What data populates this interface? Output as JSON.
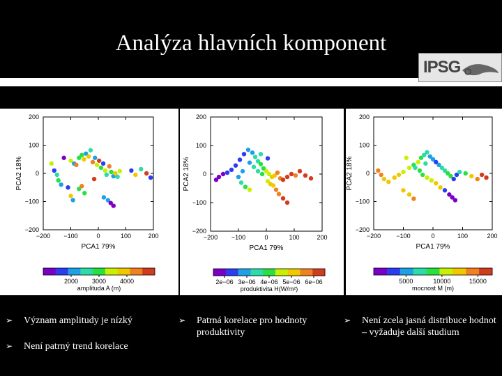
{
  "slide": {
    "title": "Analýza hlavních komponent",
    "logo_text": "IPSG"
  },
  "bullets": [
    {
      "text": "Význam amplitudy je nízký"
    },
    {
      "text": "Není patrný trend korelace"
    },
    {
      "text": "Patrná korelace pro hodnoty produktivity"
    },
    {
      "text": "Není zcela jasná distribuce hodnot – vyžaduje další studium"
    }
  ],
  "colors": {
    "palette": [
      "#7a00c8",
      "#2c3cf0",
      "#1ea0e6",
      "#2adca8",
      "#28e040",
      "#c8f000",
      "#f0c800",
      "#f08020",
      "#d23c1e"
    ]
  },
  "chart_data": [
    {
      "type": "scatter",
      "xlabel": "PCA1 79%",
      "ylabel": "PCA2 18%",
      "xlim": [
        -200,
        200
      ],
      "ylim": [
        -200,
        200
      ],
      "xticks": [
        "−200",
        "−100",
        "0",
        "100",
        "200"
      ],
      "yticks": [
        "200",
        "100",
        "0",
        "−100",
        "−200"
      ],
      "grid": false,
      "colorbar": {
        "label": "amplituda A (m)",
        "ticks": [
          "2000",
          "3000",
          "4000"
        ],
        "range": [
          1000,
          5000
        ]
      },
      "points": [
        [
          -125,
          55,
          1400
        ],
        [
          -100,
          45,
          3500
        ],
        [
          -88,
          35,
          2300
        ],
        [
          -80,
          30,
          4200
        ],
        [
          -70,
          55,
          3000
        ],
        [
          -60,
          65,
          2800
        ],
        [
          -52,
          50,
          4100
        ],
        [
          -45,
          70,
          1900
        ],
        [
          -35,
          60,
          3800
        ],
        [
          -28,
          82,
          2600
        ],
        [
          -20,
          40,
          4400
        ],
        [
          -12,
          55,
          2200
        ],
        [
          -5,
          30,
          3400
        ],
        [
          3,
          45,
          4700
        ],
        [
          10,
          20,
          2900
        ],
        [
          18,
          35,
          1700
        ],
        [
          25,
          10,
          3600
        ],
        [
          30,
          -5,
          2500
        ],
        [
          40,
          25,
          4300
        ],
        [
          47,
          5,
          3100
        ],
        [
          55,
          -10,
          2000
        ],
        [
          62,
          0,
          4000
        ],
        [
          70,
          -12,
          2700
        ],
        [
          78,
          8,
          3300
        ],
        [
          -160,
          10,
          1500
        ],
        [
          -150,
          -5,
          2400
        ],
        [
          -145,
          -25,
          3000
        ],
        [
          -135,
          -40,
          2100
        ],
        [
          -110,
          -50,
          1600
        ],
        [
          -70,
          -55,
          3200
        ],
        [
          -60,
          -45,
          4500
        ],
        [
          -50,
          -70,
          2800
        ],
        [
          -100,
          -80,
          3900
        ],
        [
          -92,
          -95,
          2300
        ],
        [
          120,
          10,
          1800
        ],
        [
          135,
          -5,
          3700
        ],
        [
          155,
          15,
          2600
        ],
        [
          175,
          0,
          4600
        ],
        [
          190,
          -15,
          1500
        ],
        [
          20,
          -85,
          2200
        ],
        [
          35,
          -95,
          1900
        ],
        [
          45,
          -105,
          1400
        ],
        [
          55,
          -115,
          1300
        ],
        [
          -170,
          35,
          3500
        ],
        [
          -15,
          -20,
          4900
        ]
      ]
    },
    {
      "type": "scatter",
      "xlabel": "PCA1 79%",
      "ylabel": "PCA2 18%",
      "xlim": [
        -200,
        200
      ],
      "ylim": [
        -200,
        200
      ],
      "xticks": [
        "−200",
        "−100",
        "0",
        "100",
        "200"
      ],
      "yticks": [
        "200",
        "100",
        "0",
        "−100",
        "−200"
      ],
      "grid": false,
      "colorbar": {
        "label": "produktivita H(W/m²)",
        "ticks": [
          "2e−06",
          "3e−06",
          "4e−06",
          "5e−06",
          "6e−06"
        ],
        "range": [
          1.5e-06,
          6.5e-06
        ]
      },
      "points": [
        [
          -180,
          -20,
          1.6e-06
        ],
        [
          -170,
          -10,
          1.8e-06
        ],
        [
          -155,
          0,
          2e-06
        ],
        [
          -140,
          5,
          2.2e-06
        ],
        [
          -125,
          15,
          2.4e-06
        ],
        [
          -110,
          30,
          2.3e-06
        ],
        [
          -95,
          50,
          2.6e-06
        ],
        [
          -80,
          70,
          2.5e-06
        ],
        [
          -65,
          85,
          2.7e-06
        ],
        [
          -50,
          75,
          3e-06
        ],
        [
          -40,
          60,
          3.3e-06
        ],
        [
          -30,
          45,
          3.6e-06
        ],
        [
          -20,
          35,
          3.9e-06
        ],
        [
          -10,
          20,
          4.2e-06
        ],
        [
          0,
          10,
          4.4e-06
        ],
        [
          10,
          0,
          4.7e-06
        ],
        [
          20,
          -10,
          5e-06
        ],
        [
          30,
          -5,
          5.2e-06
        ],
        [
          40,
          5,
          5.5e-06
        ],
        [
          50,
          -15,
          5.8e-06
        ],
        [
          60,
          -20,
          6.1e-06
        ],
        [
          75,
          -10,
          6.2e-06
        ],
        [
          90,
          0,
          6e-06
        ],
        [
          105,
          -5,
          5.7e-06
        ],
        [
          120,
          10,
          6.3e-06
        ],
        [
          140,
          -5,
          6e-06
        ],
        [
          160,
          -15,
          6.4e-06
        ],
        [
          -60,
          40,
          2.9e-06
        ],
        [
          -45,
          25,
          3.4e-06
        ],
        [
          -30,
          10,
          3.7e-06
        ],
        [
          -15,
          0,
          4e-06
        ],
        [
          5,
          -25,
          4.6e-06
        ],
        [
          15,
          -35,
          4.9e-06
        ],
        [
          25,
          -40,
          5.3e-06
        ],
        [
          35,
          -55,
          5.6e-06
        ],
        [
          45,
          -70,
          5.9e-06
        ],
        [
          60,
          -85,
          6.1e-06
        ],
        [
          75,
          -100,
          6.3e-06
        ],
        [
          -100,
          -10,
          3.1e-06
        ],
        [
          -90,
          -30,
          3.5e-06
        ],
        [
          -75,
          -45,
          4.1e-06
        ],
        [
          -60,
          -55,
          4.5e-06
        ],
        [
          -85,
          10,
          2.8e-06
        ],
        [
          -20,
          70,
          3.2e-06
        ],
        [
          5,
          55,
          2.6e-06
        ]
      ]
    },
    {
      "type": "scatter",
      "xlabel": "PCA1 79%",
      "ylabel": "PCA2 18%",
      "xlim": [
        -200,
        200
      ],
      "ylim": [
        -200,
        200
      ],
      "xticks": [
        "−200",
        "−100",
        "0",
        "100",
        "200"
      ],
      "yticks": [
        "200",
        "100",
        "0",
        "−100",
        "−200"
      ],
      "grid": false,
      "colorbar": {
        "label": "mocnost M (m)",
        "ticks": [
          "5000",
          "10000",
          "15000"
        ],
        "range": [
          500,
          17000
        ]
      },
      "points": [
        [
          -185,
          10,
          13500
        ],
        [
          -175,
          -5,
          14000
        ],
        [
          -165,
          -20,
          12500
        ],
        [
          -150,
          -30,
          13000
        ],
        [
          -130,
          -15,
          11500
        ],
        [
          -115,
          -5,
          12000
        ],
        [
          -100,
          5,
          10500
        ],
        [
          -80,
          20,
          11000
        ],
        [
          -65,
          30,
          9500
        ],
        [
          -50,
          40,
          10000
        ],
        [
          -40,
          55,
          8500
        ],
        [
          -30,
          65,
          7500
        ],
        [
          -20,
          75,
          6500
        ],
        [
          -10,
          60,
          5500
        ],
        [
          0,
          50,
          4500
        ],
        [
          10,
          40,
          3500
        ],
        [
          20,
          30,
          5000
        ],
        [
          30,
          20,
          6000
        ],
        [
          40,
          10,
          7000
        ],
        [
          50,
          0,
          8000
        ],
        [
          60,
          -10,
          9000
        ],
        [
          70,
          -20,
          4000
        ],
        [
          80,
          -5,
          3000
        ],
        [
          90,
          5,
          6000
        ],
        [
          110,
          0,
          8500
        ],
        [
          130,
          -10,
          12000
        ],
        [
          150,
          -20,
          14500
        ],
        [
          165,
          -5,
          15500
        ],
        [
          180,
          -15,
          16000
        ],
        [
          -60,
          20,
          7800
        ],
        [
          -45,
          10,
          8800
        ],
        [
          -35,
          -5,
          9200
        ],
        [
          -20,
          -15,
          10200
        ],
        [
          -5,
          -25,
          11200
        ],
        [
          10,
          -35,
          12300
        ],
        [
          25,
          -50,
          13300
        ],
        [
          40,
          -60,
          2500
        ],
        [
          55,
          -75,
          2000
        ],
        [
          65,
          -85,
          1500
        ],
        [
          75,
          -95,
          1200
        ],
        [
          -100,
          -60,
          12800
        ],
        [
          -80,
          -75,
          11800
        ],
        [
          -65,
          -90,
          13800
        ],
        [
          -90,
          55,
          9800
        ],
        [
          -25,
          35,
          6800
        ]
      ]
    }
  ]
}
